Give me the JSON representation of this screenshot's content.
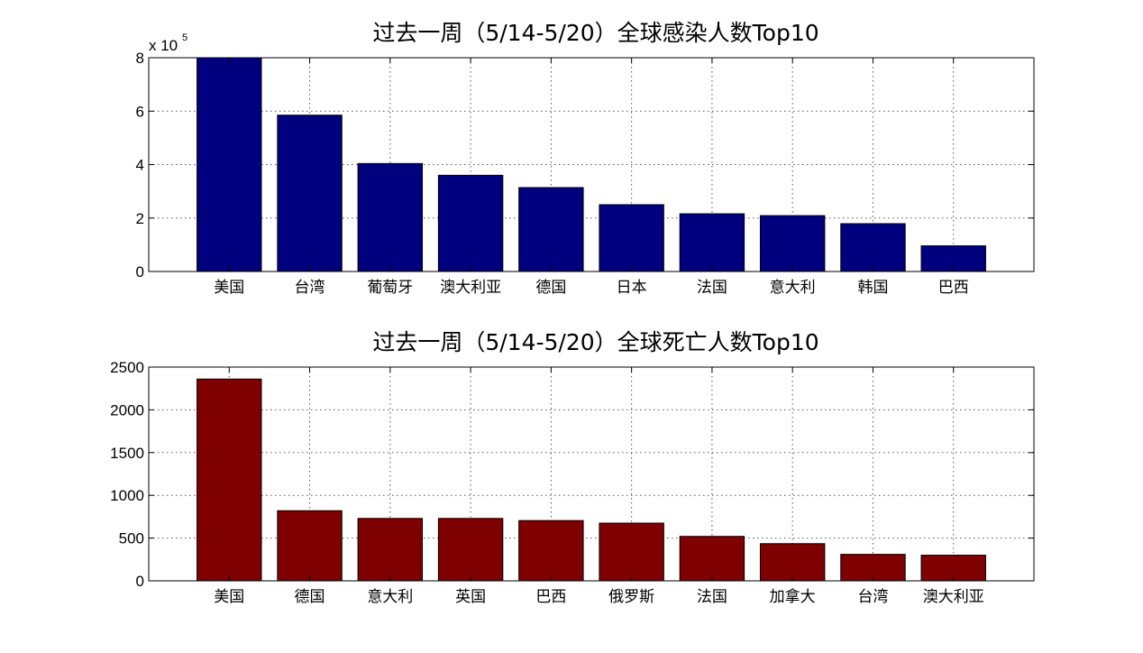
{
  "chart_data": [
    {
      "type": "bar",
      "title": "过去一周（5/14-5/20）全球感染人数Top10",
      "categories": [
        "美国",
        "台湾",
        "葡萄牙",
        "澳大利亚",
        "德国",
        "日本",
        "法国",
        "意大利",
        "韩国",
        "巴西"
      ],
      "values": [
        800000,
        585000,
        404000,
        360000,
        314000,
        250000,
        216000,
        209000,
        179000,
        96000
      ],
      "ylim": [
        0,
        800000
      ],
      "yticks": [
        0,
        200000,
        400000,
        600000,
        800000
      ],
      "ytick_labels": [
        "0",
        "2",
        "4",
        "6",
        "8"
      ],
      "y_exponent": {
        "base": "x 10",
        "power": "5"
      },
      "xlabel": "",
      "ylabel": "",
      "grid": true,
      "bar_color": "#00007F"
    },
    {
      "type": "bar",
      "title": "过去一周（5/14-5/20）全球死亡人数Top10",
      "categories": [
        "美国",
        "德国",
        "意大利",
        "英国",
        "巴西",
        "俄罗斯",
        "法国",
        "加拿大",
        "台湾",
        "澳大利亚"
      ],
      "values": [
        2360,
        820,
        730,
        730,
        705,
        675,
        520,
        435,
        310,
        300
      ],
      "ylim": [
        0,
        2500
      ],
      "yticks": [
        0,
        500,
        1000,
        1500,
        2000,
        2500
      ],
      "ytick_labels": [
        "0",
        "500",
        "1000",
        "1500",
        "2000",
        "2500"
      ],
      "xlabel": "",
      "ylabel": "",
      "grid": true,
      "bar_color": "#7F0000"
    }
  ]
}
